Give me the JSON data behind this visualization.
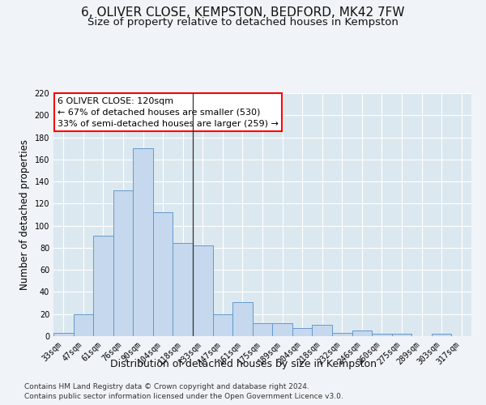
{
  "title": "6, OLIVER CLOSE, KEMPSTON, BEDFORD, MK42 7FW",
  "subtitle": "Size of property relative to detached houses in Kempston",
  "xlabel": "Distribution of detached houses by size in Kempston",
  "ylabel": "Number of detached properties",
  "categories": [
    "33sqm",
    "47sqm",
    "61sqm",
    "76sqm",
    "90sqm",
    "104sqm",
    "118sqm",
    "133sqm",
    "147sqm",
    "161sqm",
    "175sqm",
    "189sqm",
    "204sqm",
    "218sqm",
    "232sqm",
    "246sqm",
    "260sqm",
    "275sqm",
    "289sqm",
    "303sqm",
    "317sqm"
  ],
  "values": [
    3,
    20,
    91,
    132,
    170,
    112,
    84,
    82,
    20,
    31,
    12,
    12,
    7,
    10,
    3,
    5,
    2,
    2,
    0,
    2,
    0
  ],
  "bar_color": "#c5d8ed",
  "bar_edge_color": "#6699cc",
  "highlight_label": "6 OLIVER CLOSE: 120sqm",
  "annotation_line": "← 67% of detached houses are smaller (530)",
  "annotation_line2": "33% of semi-detached houses are larger (259) →",
  "ylim": [
    0,
    220
  ],
  "yticks": [
    0,
    20,
    40,
    60,
    80,
    100,
    120,
    140,
    160,
    180,
    200,
    220
  ],
  "vline_position": 6.5,
  "footnote1": "Contains HM Land Registry data © Crown copyright and database right 2024.",
  "footnote2": "Contains public sector information licensed under the Open Government Licence v3.0.",
  "fig_bg_color": "#f0f4f8",
  "plot_bg_color": "#dce8f0",
  "grid_color": "#ffffff",
  "title_fontsize": 11,
  "subtitle_fontsize": 9.5,
  "xlabel_fontsize": 9,
  "ylabel_fontsize": 8.5,
  "tick_fontsize": 7,
  "annotation_fontsize": 8,
  "footnote_fontsize": 6.5
}
